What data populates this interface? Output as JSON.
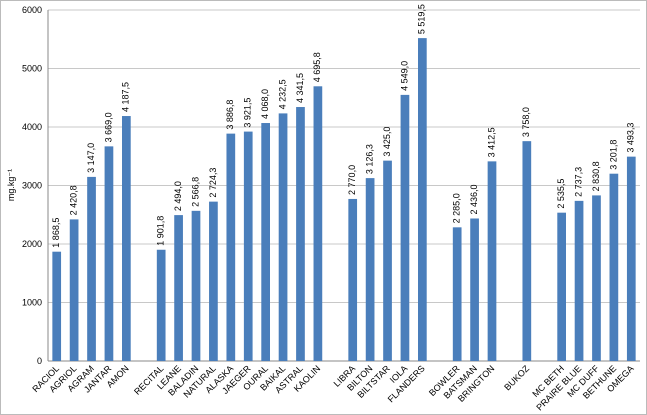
{
  "chart_data": {
    "type": "bar",
    "y_label": "mg.kg⁻¹",
    "categories": [
      "RACIOL",
      "AGRIOL",
      "AGRAM",
      "JANTAR",
      "AMON",
      null,
      "RECITAL",
      "LEANE",
      "BALADIN",
      "NATURAL",
      "ALASKA",
      "JAEGER",
      "OURAL",
      "BAIKAL",
      "ASTRAL",
      "KAOLIN",
      null,
      "LIBRA",
      "BILTON",
      "BILTSTAR",
      "IOLA",
      "FLANDERS",
      null,
      "BOWLER",
      "BATSMAN",
      "BRINGTON",
      null,
      "BUKOZ",
      null,
      "MC BETH",
      "PRAIRE BLUE",
      "MC DUFF",
      "BETHUNE",
      "OMEGA"
    ],
    "values": [
      1868.5,
      2420.8,
      3147.0,
      3669.0,
      4187.5,
      null,
      1901.8,
      2494.0,
      2566.8,
      2724.3,
      3886.8,
      3921.5,
      4068.0,
      4232.5,
      4341.5,
      4695.8,
      null,
      2770.0,
      3126.3,
      3425.0,
      4549.0,
      5519.5,
      null,
      2285.0,
      2436.0,
      3412.5,
      null,
      3758.0,
      null,
      2535.5,
      2737.3,
      2830.8,
      3201.8,
      3493.3
    ],
    "value_labels": [
      "1 868,5",
      "2 420,8",
      "3 147,0",
      "3 669,0",
      "4 187,5",
      null,
      "1 901,8",
      "2 494,0",
      "2 566,8",
      "2 724,3",
      "3 886,8",
      "3 921,5",
      "4 068,0",
      "4 232,5",
      "4 341,5",
      "4 695,8",
      null,
      "2 770,0",
      "3 126,3",
      "3 425,0",
      "4 549,0",
      "5 519,5",
      null,
      "2 285,0",
      "2 436,0",
      "3 412,5",
      null,
      "3 758,0",
      null,
      "2 535,5",
      "2 737,3",
      "2 830,8",
      "3 201,8",
      "3 493,3"
    ],
    "color": "#4a7ebb",
    "ylim": [
      0,
      6000
    ],
    "yticks": [
      0,
      1000,
      2000,
      3000,
      4000,
      5000,
      6000
    ],
    "grid": true
  }
}
